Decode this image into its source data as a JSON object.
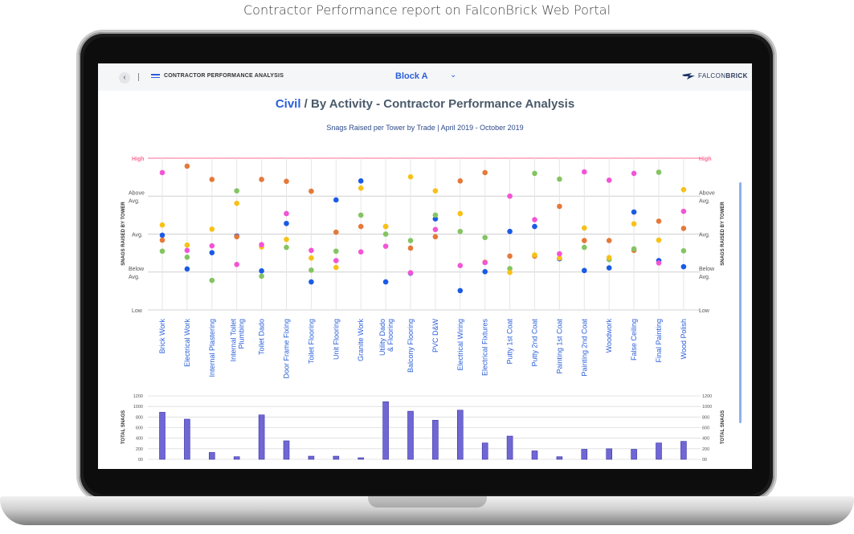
{
  "caption": "Contractor Performance report on FalconBrick Web Portal",
  "topbar": {
    "app_title": "CONTRACTOR PERFORMANCE ANALYSIS",
    "block": "Block A",
    "brand_pre": "FALCON",
    "brand_post": "BRICK"
  },
  "title": {
    "trade": "Civil",
    "rest": " / By Activity - Contractor Performance Analysis"
  },
  "subtitle": "Snags Raised per Tower by Trade | April 2019 - October 2019",
  "colors": {
    "blue": "#1a5be6",
    "orange": "#e5793a",
    "green": "#84c462",
    "yellow": "#f8c118",
    "pink": "#f354d5",
    "bar": "#7067d4",
    "high_line": "#ff6b94"
  },
  "chart_data": [
    {
      "type": "scatter",
      "title": "Civil / By Activity - Contractor Performance Analysis",
      "subtitle": "Snags Raised per Tower by Trade | April 2019 - October 2019",
      "ylabel": "SNAGS RAISED BY TOWER",
      "y_levels": [
        "High",
        "Above Avg.",
        "Avg.",
        "Below Avg.",
        "Low"
      ],
      "ylim": [
        0,
        4
      ],
      "categories": [
        "Brick Work",
        "Electrical Work",
        "Internal Plastering",
        "Internal Toilet Plumbing",
        "Toilet Dado",
        "Door Frame Fixing",
        "Toilet Flooring",
        "Unit Flooring",
        "Granite Work",
        "Utility Dado & Flooring",
        "Balcony Flooring",
        "PVC D&W",
        "Electrical Wiring",
        "Electrical Fixtures",
        "Putty 1st Coat",
        "Putty 2nd Coat",
        "Painting 1st Coat",
        "Painting 2nd Coat",
        "Woodwork",
        "False Ceiling",
        "Final Painting",
        "Wood Polish"
      ],
      "series": [
        {
          "color": "blue",
          "values": [
            1.97,
            1.08,
            1.51,
            1.95,
            1.03,
            2.28,
            0.74,
            2.9,
            3.4,
            0.74,
            0.97,
            2.4,
            0.51,
            1.01,
            2.07,
            2.2,
            1.35,
            1.04,
            1.11,
            2.58,
            1.3,
            1.14
          ]
        },
        {
          "color": "orange",
          "values": [
            1.84,
            3.79,
            3.44,
            1.93,
            3.44,
            3.39,
            3.13,
            2.05,
            2.2,
            2.2,
            1.63,
            1.93,
            3.4,
            3.62,
            1.42,
            1.42,
            2.73,
            1.83,
            1.83,
            1.57,
            2.34,
            2.15
          ]
        },
        {
          "color": "green",
          "values": [
            1.55,
            1.39,
            0.78,
            3.14,
            0.89,
            1.65,
            1.05,
            1.55,
            2.5,
            2.0,
            1.83,
            2.5,
            2.07,
            1.91,
            1.09,
            3.6,
            3.45,
            1.65,
            1.33,
            1.61,
            3.63,
            1.56
          ]
        },
        {
          "color": "yellow",
          "values": [
            2.24,
            1.71,
            2.13,
            2.81,
            1.66,
            1.86,
            1.37,
            1.12,
            3.21,
            2.2,
            3.51,
            3.14,
            2.54,
            1.26,
            0.99,
            1.45,
            1.37,
            2.16,
            1.38,
            2.27,
            1.84,
            3.17
          ]
        },
        {
          "color": "pink",
          "values": [
            3.62,
            1.57,
            1.69,
            1.2,
            1.72,
            2.54,
            1.57,
            1.3,
            1.53,
            1.68,
            0.98,
            2.12,
            1.17,
            1.25,
            3.0,
            2.38,
            1.48,
            3.64,
            3.42,
            3.6,
            1.24,
            2.6
          ]
        }
      ]
    },
    {
      "type": "bar",
      "ylabel": "TOTAL SNAGS",
      "ylim": [
        0,
        1200
      ],
      "yticks": [
        "1200",
        "1000",
        "800",
        "600",
        "400",
        "200",
        "00"
      ],
      "categories": [
        "Brick Work",
        "Electrical Work",
        "Internal Plastering",
        "Internal Toilet Plumbing",
        "Toilet Dado",
        "Door Frame Fixing",
        "Toilet Flooring",
        "Unit Flooring",
        "Granite Work",
        "Utility Dado & Flooring",
        "Balcony Flooring",
        "PVC D&W",
        "Electrical Wiring",
        "Electrical Fixtures",
        "Putty 1st Coat",
        "Putty 2nd Coat",
        "Painting 1st Coat",
        "Painting 2nd Coat",
        "Woodwork",
        "False Ceiling",
        "Final Painting",
        "Wood Polish"
      ],
      "values": [
        890,
        760,
        130,
        50,
        840,
        350,
        60,
        60,
        30,
        1090,
        910,
        740,
        930,
        310,
        440,
        160,
        50,
        190,
        200,
        190,
        310,
        340
      ]
    }
  ]
}
